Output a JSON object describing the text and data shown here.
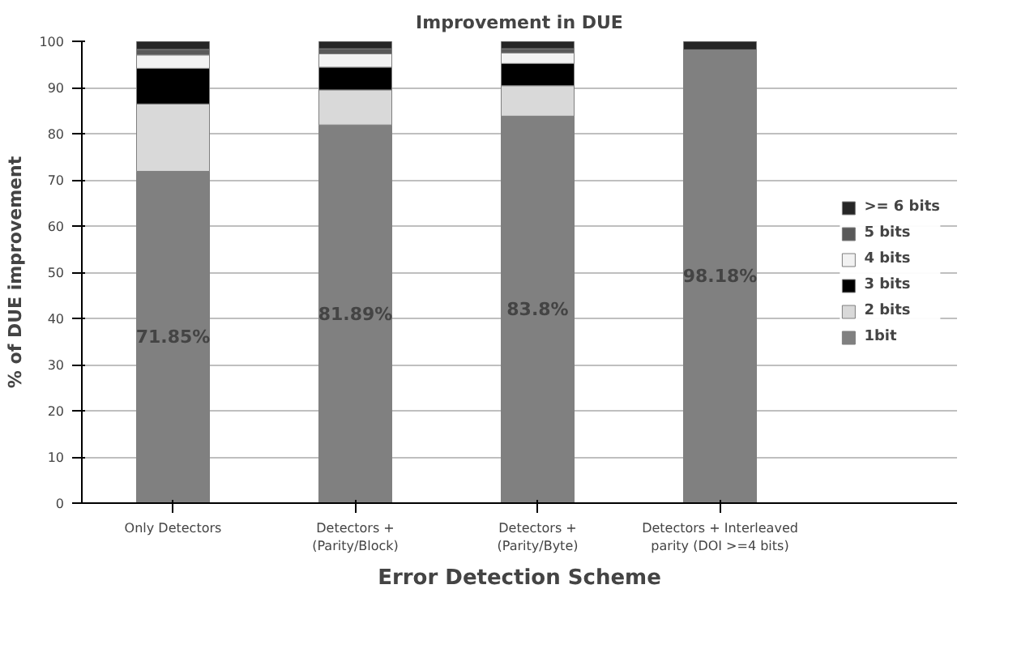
{
  "chart_data": {
    "type": "bar",
    "stacked": true,
    "title": "Improvement in DUE",
    "xlabel": "Error Detection Scheme",
    "ylabel": "% of DUE improvement",
    "categories": [
      "Only Detectors",
      "Detectors + (Parity/Block)",
      "Detectors + (Parity/Byte)",
      "Detectors + Interleaved parity (DOI >=4 bits)"
    ],
    "series": [
      {
        "name": "1bit",
        "color": "#808080",
        "values": [
          71.85,
          81.89,
          83.8,
          98.18
        ],
        "value_labels": [
          "71.85%",
          "81.89%",
          "83.8%",
          "98.18%"
        ]
      },
      {
        "name": "2 bits",
        "color": "#d9d9d9",
        "values": [
          14.6,
          7.6,
          6.6,
          0
        ]
      },
      {
        "name": "3 bits",
        "color": "#000000",
        "values": [
          7.7,
          4.9,
          4.8,
          0
        ]
      },
      {
        "name": "4 bits",
        "color": "#f2f2f2",
        "values": [
          2.9,
          2.9,
          2.3,
          0
        ]
      },
      {
        "name": "5 bits",
        "color": "#595959",
        "values": [
          1.2,
          1.1,
          0.9,
          0
        ]
      },
      {
        "name": ">= 6 bits",
        "color": "#262626",
        "values": [
          1.8,
          1.6,
          1.6,
          1.8
        ]
      }
    ],
    "ylim": [
      0,
      100
    ],
    "yticks": [
      0,
      10,
      20,
      30,
      40,
      50,
      60,
      70,
      80,
      90,
      100
    ],
    "grid": "y",
    "legend": "right"
  }
}
